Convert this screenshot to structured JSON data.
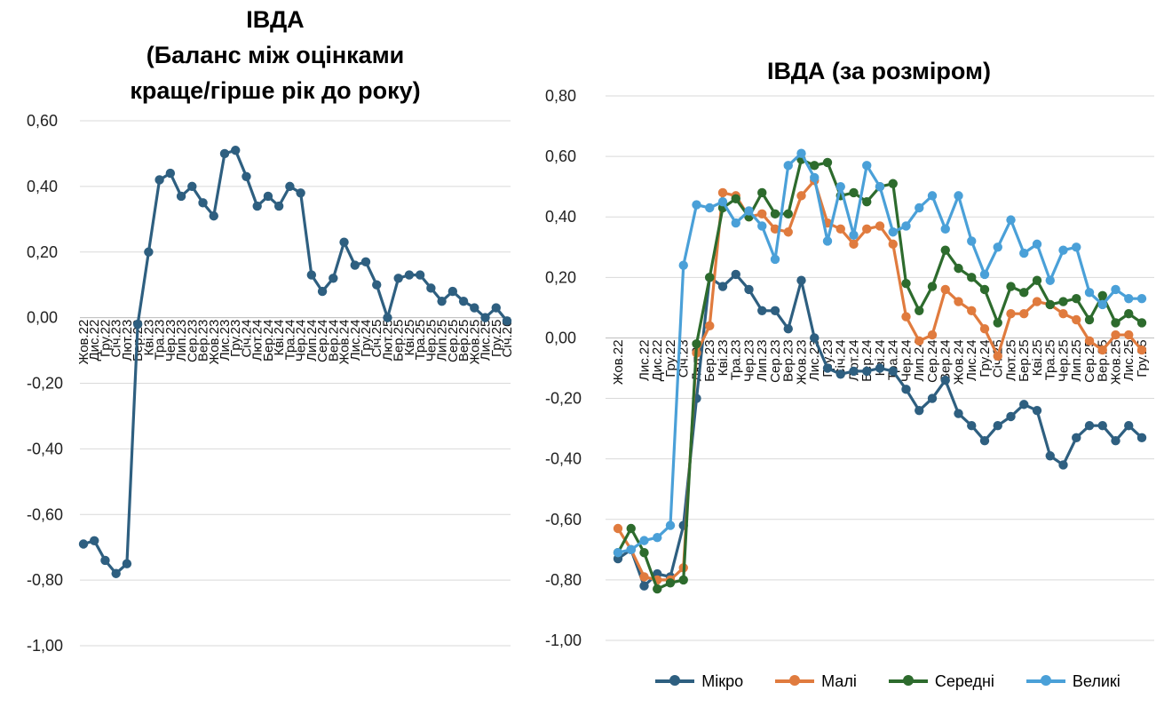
{
  "chart_data": [
    {
      "type": "line",
      "title": "ІВДА\n(Баланс між оцінками\nкраще/гірше рік до року)",
      "ylim": [
        -1.0,
        0.6
      ],
      "yticks": [
        "0,60",
        "0,40",
        "0,20",
        "0,00",
        "-0,20",
        "-0,40",
        "-0,60",
        "-0,80",
        "-1,00"
      ],
      "tick_labels": [
        "Жов.22",
        "Дис.22",
        "Гру.22",
        "Січ.23",
        "Лют.23",
        "Бер.23",
        "Кві.23",
        "Тра.23",
        "Чер.23",
        "Лип.23",
        "Сер.23",
        "Вер.23",
        "Жов.23",
        "Лис.23",
        "Гру.23",
        "Січ.24",
        "Лют.24",
        "Бер.24",
        "Кві.24",
        "Тра.24",
        "Чер.24",
        "Лип.24",
        "Сер.24",
        "Вер.24",
        "Жов.24",
        "Лис.24",
        "Гру.24",
        "Січ.25",
        "Лют.25",
        "Бер.25",
        "Кві.25",
        "Тра.25",
        "Чер.25",
        "Лип.25",
        "Сер.25",
        "Вер.25",
        "Жов.25",
        "Лис.25",
        "Гру.25",
        "Січ.26"
      ],
      "grid": true,
      "legend": "none",
      "series": [
        {
          "color": "#2e5f80",
          "values": [
            -0.69,
            -0.68,
            -0.74,
            -0.78,
            -0.75,
            -0.02,
            0.2,
            0.42,
            0.44,
            0.37,
            0.4,
            0.35,
            0.31,
            0.5,
            0.51,
            0.43,
            0.34,
            0.37,
            0.34,
            0.4,
            0.38,
            0.13,
            0.08,
            0.12,
            0.23,
            0.16,
            0.17,
            0.1,
            0.0,
            0.12,
            0.13,
            0.13,
            0.09,
            0.05,
            0.08,
            0.05,
            0.03,
            0.0,
            0.03,
            -0.01
          ]
        }
      ]
    },
    {
      "type": "line",
      "title": "ІВДА (за розміром)",
      "ylim": [
        -1.0,
        0.8
      ],
      "yticks": [
        "0,80",
        "0,60",
        "0,40",
        "0,20",
        "0,00",
        "-0,20",
        "-0,40",
        "-0,60",
        "-0,80",
        "-1,00"
      ],
      "tick_labels": [
        "Жов.22",
        "Лис.22",
        "Дис.22",
        "Гру.22",
        "Січ.23",
        "Лют.23",
        "Бер.23",
        "Кві.23",
        "Тра.23",
        "Чер.23",
        "Лип.23",
        "Сер.23",
        "Вер.23",
        "Жов.23",
        "Лис.23",
        "Гру.23",
        "Січ.24",
        "Лют.24",
        "Бер.24",
        "Кві.24",
        "Тра.24",
        "Чер.24",
        "Лип.24",
        "Сер.24",
        "Вер.24",
        "Жов.24",
        "Лис.24",
        "Гру.24",
        "Січ.25",
        "Лют.25",
        "Бер.25",
        "Кві.25",
        "Тра.25",
        "Чер.25",
        "Лип.25",
        "Сер.25",
        "Вер.25",
        "Жов.25",
        "Лис.25",
        "Гру.25",
        "Січ.26"
      ],
      "label_every": [
        0,
        2,
        3,
        4,
        5,
        6,
        7,
        8,
        9,
        10,
        11,
        12,
        13,
        14,
        15,
        16,
        17,
        18,
        19,
        20,
        21,
        22,
        23,
        24,
        25,
        26,
        27,
        28,
        29,
        30,
        31,
        32,
        33,
        34,
        35,
        36,
        37,
        38,
        39,
        40
      ],
      "grid": true,
      "legend": "bottom",
      "series": [
        {
          "name": "Мікро",
          "color": "#2e5f80",
          "values": [
            -0.73,
            -0.7,
            -0.82,
            -0.78,
            -0.79,
            -0.62,
            -0.2,
            0.2,
            0.17,
            0.21,
            0.16,
            0.09,
            0.09,
            0.03,
            0.19,
            0.0,
            -0.1,
            -0.12,
            -0.11,
            -0.11,
            -0.1,
            -0.11,
            -0.17,
            -0.24,
            -0.2,
            -0.14,
            -0.25,
            -0.29,
            -0.34,
            -0.29,
            -0.26,
            -0.22,
            -0.24,
            -0.39,
            -0.42,
            -0.33,
            -0.29,
            -0.29,
            -0.34,
            -0.29,
            -0.33
          ]
        },
        {
          "name": "Малі",
          "color": "#e07b3e",
          "values": [
            -0.63,
            -0.7,
            -0.79,
            -0.8,
            -0.8,
            -0.76,
            -0.05,
            0.04,
            0.48,
            0.47,
            0.4,
            0.41,
            0.36,
            0.35,
            0.47,
            0.52,
            0.38,
            0.36,
            0.31,
            0.36,
            0.37,
            0.31,
            0.07,
            -0.01,
            0.01,
            0.16,
            0.12,
            0.09,
            0.03,
            -0.06,
            0.08,
            0.08,
            0.12,
            0.11,
            0.08,
            0.06,
            -0.01,
            -0.04,
            0.01,
            0.01,
            -0.04
          ]
        },
        {
          "name": "Середні",
          "color": "#2d6b2d",
          "values": [
            -0.71,
            -0.63,
            -0.71,
            -0.83,
            -0.81,
            -0.8,
            -0.02,
            0.2,
            0.43,
            0.46,
            0.4,
            0.48,
            0.41,
            0.41,
            0.59,
            0.57,
            0.58,
            0.47,
            0.48,
            0.45,
            0.5,
            0.51,
            0.18,
            0.09,
            0.17,
            0.29,
            0.23,
            0.2,
            0.16,
            0.05,
            0.17,
            0.15,
            0.19,
            0.11,
            0.12,
            0.13,
            0.06,
            0.14,
            0.05,
            0.08,
            0.05
          ]
        },
        {
          "name": "Великі",
          "color": "#4aa0d8",
          "values": [
            -0.71,
            -0.7,
            -0.67,
            -0.66,
            -0.62,
            0.24,
            0.44,
            0.43,
            0.45,
            0.38,
            0.42,
            0.37,
            0.26,
            0.57,
            0.61,
            0.53,
            0.32,
            0.5,
            0.34,
            0.57,
            0.5,
            0.35,
            0.37,
            0.43,
            0.47,
            0.36,
            0.47,
            0.32,
            0.21,
            0.3,
            0.39,
            0.28,
            0.31,
            0.19,
            0.29,
            0.3,
            0.15,
            0.11,
            0.16,
            0.13,
            0.13
          ]
        }
      ]
    }
  ]
}
